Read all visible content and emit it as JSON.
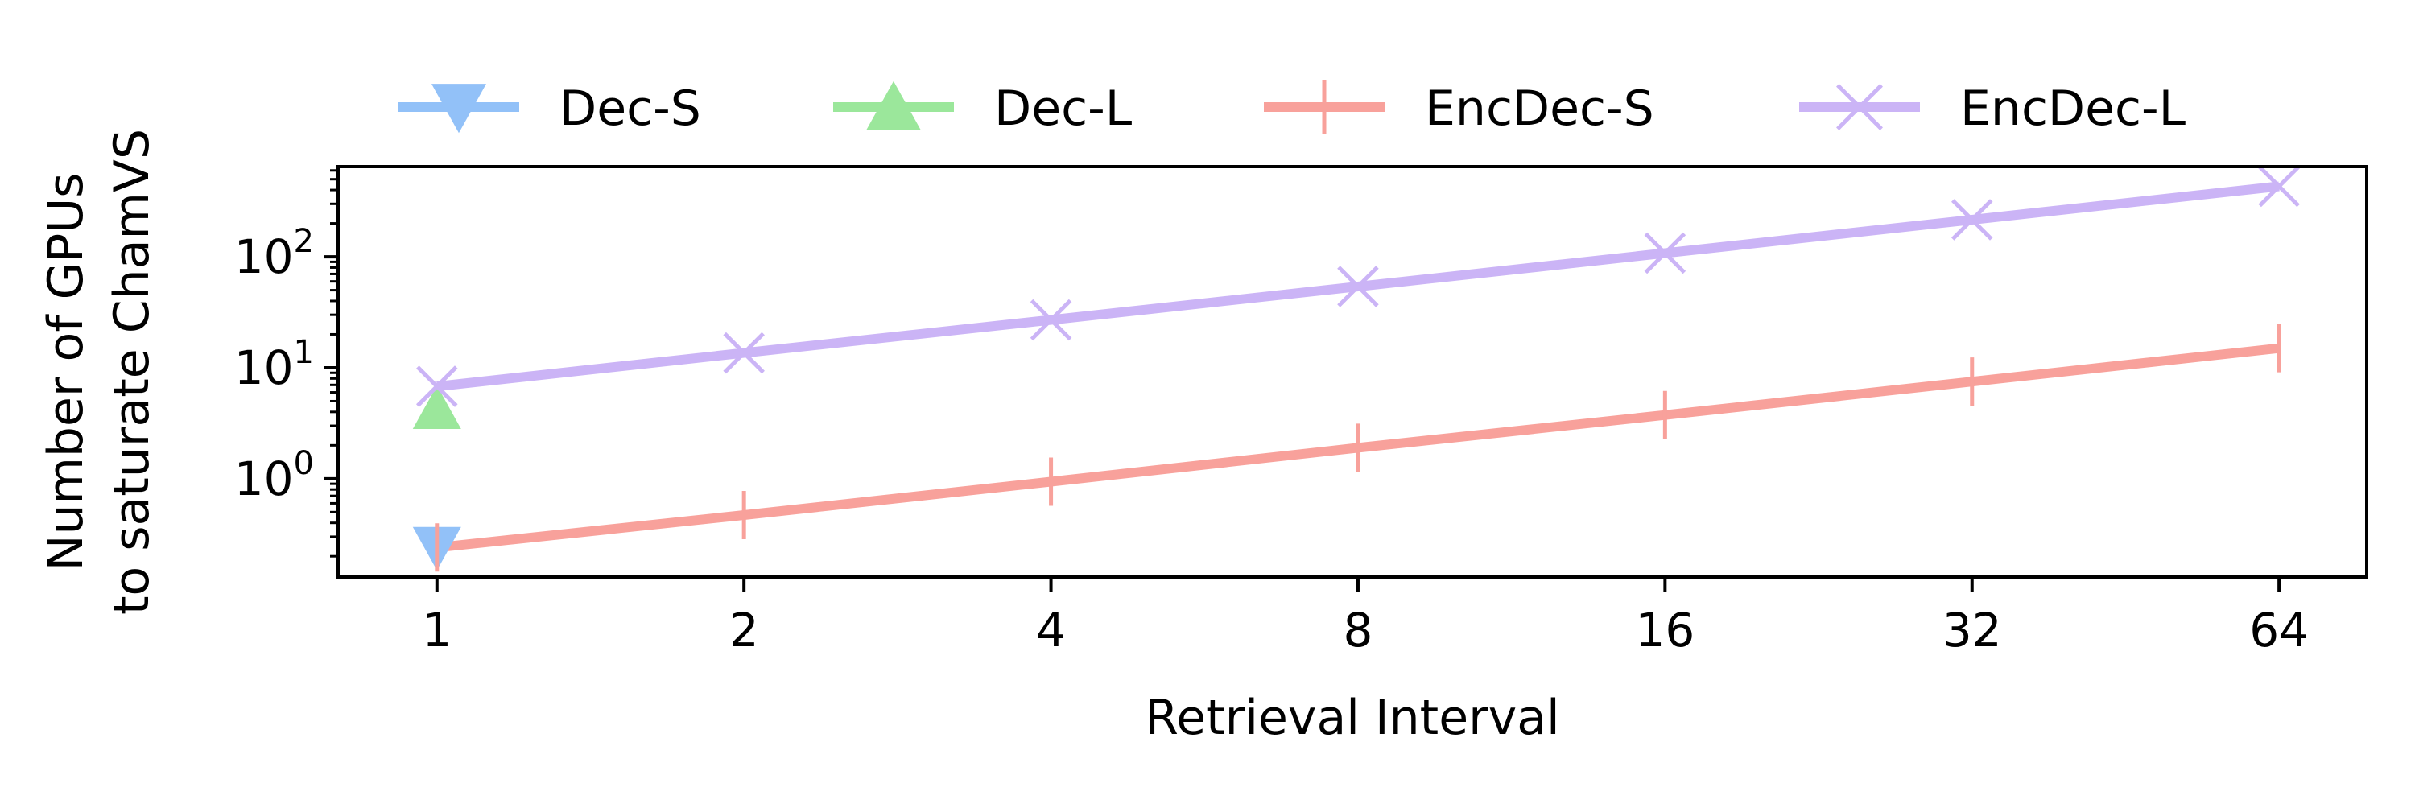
{
  "chart_data": {
    "type": "line",
    "title": "",
    "xlabel": "Retrieval Interval",
    "ylabel_lines": [
      "Number of GPUs",
      "to saturate ChamVS"
    ],
    "x_scale": "log2",
    "y_scale": "log10",
    "x_ticks": [
      1,
      2,
      4,
      8,
      16,
      32,
      64
    ],
    "x_tick_labels": [
      "1",
      "2",
      "4",
      "8",
      "16",
      "32",
      "64"
    ],
    "y_ticks": [
      {
        "value": 1,
        "base": "10",
        "exponent": "0"
      },
      {
        "value": 10,
        "base": "10",
        "exponent": "1"
      },
      {
        "value": 100,
        "base": "10",
        "exponent": "2"
      }
    ],
    "xlim": [
      0.8,
      78
    ],
    "ylim": [
      0.13,
      650
    ],
    "grid": false,
    "legend_position": "top",
    "series": [
      {
        "name": "Dec-S",
        "color": "#92c1f8",
        "marker": "triangle-down",
        "x": [
          1
        ],
        "y": [
          0.24
        ]
      },
      {
        "name": "Dec-L",
        "color": "#9be79b",
        "marker": "triangle-up",
        "x": [
          1
        ],
        "y": [
          4.3
        ]
      },
      {
        "name": "EncDec-S",
        "color": "#f8a19b",
        "marker": "vline",
        "x": [
          1,
          2,
          4,
          8,
          16,
          32,
          64
        ],
        "y": [
          0.24,
          0.47,
          0.94,
          1.9,
          3.75,
          7.5,
          15
        ]
      },
      {
        "name": "EncDec-L",
        "color": "#cbb4f6",
        "marker": "x",
        "x": [
          1,
          2,
          4,
          8,
          16,
          32,
          64
        ],
        "y": [
          6.8,
          13.6,
          27,
          54,
          108,
          216,
          432
        ]
      }
    ]
  }
}
